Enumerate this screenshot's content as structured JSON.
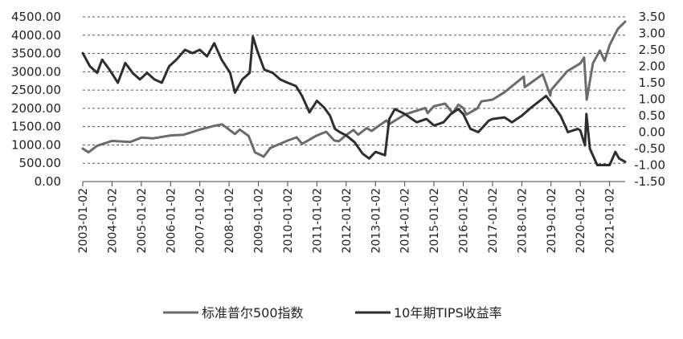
{
  "chart_data": {
    "type": "line",
    "title": "",
    "xlabel": "",
    "ylabel": "",
    "y2label": "",
    "x_ticks": [
      "2003-01-02",
      "2004-01-02",
      "2005-01-02",
      "2006-01-02",
      "2007-01-02",
      "2008-01-02",
      "2009-01-02",
      "2010-01-02",
      "2011-01-02",
      "2012-01-02",
      "2013-01-02",
      "2014-01-02",
      "2015-01-02",
      "2016-01-02",
      "2017-01-02",
      "2018-01-02",
      "2019-01-02",
      "2020-01-02",
      "2021-01-02"
    ],
    "xlim": [
      "2003-01-02",
      "2021-07-15"
    ],
    "y_left": {
      "lim": [
        0,
        4500
      ],
      "ticks": [
        "0.00",
        "500.00",
        "1000.00",
        "1500.00",
        "2000.00",
        "2500.00",
        "3000.00",
        "3500.00",
        "4000.00",
        "4500.00"
      ]
    },
    "y_right": {
      "lim": [
        -1.5,
        3.5
      ],
      "ticks": [
        "-1.50",
        "-1.00",
        "-0.50",
        "0.00",
        "0.50",
        "1.00",
        "1.50",
        "2.00",
        "2.50",
        "3.00",
        "3.50"
      ]
    },
    "grid": "horizontal dashed",
    "legend_position": "bottom",
    "series": [
      {
        "name": "标准普尔500指数",
        "axis": "left",
        "color": "#6b6b6b",
        "x": [
          "2003-01-02",
          "2003-03-15",
          "2003-07-01",
          "2004-01-02",
          "2004-08-15",
          "2005-01-02",
          "2005-06-01",
          "2006-01-02",
          "2006-06-15",
          "2007-01-02",
          "2007-07-15",
          "2007-10-09",
          "2008-03-15",
          "2008-05-15",
          "2008-09-01",
          "2008-11-20",
          "2009-03-09",
          "2009-06-01",
          "2010-01-02",
          "2010-04-25",
          "2010-07-02",
          "2011-01-02",
          "2011-04-29",
          "2011-08-08",
          "2011-10-03",
          "2012-01-02",
          "2012-04-01",
          "2012-06-01",
          "2012-09-15",
          "2012-11-15",
          "2013-01-02",
          "2013-05-21",
          "2013-06-24",
          "2014-01-02",
          "2014-09-15",
          "2014-10-15",
          "2015-01-02",
          "2015-05-21",
          "2015-08-25",
          "2015-11-01",
          "2016-01-02",
          "2016-02-11",
          "2016-06-27",
          "2016-08-15",
          "2017-01-02",
          "2017-06-01",
          "2018-01-26",
          "2018-02-08",
          "2018-09-20",
          "2018-12-24",
          "2019-01-02",
          "2019-07-26",
          "2020-01-02",
          "2020-02-19",
          "2020-03-23",
          "2020-06-08",
          "2020-09-02",
          "2020-11-01",
          "2021-01-02",
          "2021-04-15",
          "2021-07-15"
        ],
        "values": [
          900,
          800,
          980,
          1110,
          1080,
          1200,
          1180,
          1260,
          1280,
          1420,
          1530,
          1560,
          1300,
          1420,
          1250,
          800,
          680,
          920,
          1120,
          1210,
          1030,
          1260,
          1360,
          1120,
          1100,
          1270,
          1410,
          1280,
          1460,
          1380,
          1460,
          1670,
          1570,
          1830,
          2010,
          1870,
          2060,
          2130,
          1870,
          2100,
          2010,
          1830,
          2000,
          2190,
          2240,
          2440,
          2870,
          2580,
          2930,
          2350,
          2500,
          3020,
          3230,
          3390,
          2240,
          3230,
          3580,
          3300,
          3730,
          4170,
          4370
        ]
      },
      {
        "name": "10年期TIPS收益率",
        "axis": "right",
        "color": "#2e2e2e",
        "x": [
          "2003-01-02",
          "2003-04-01",
          "2003-07-01",
          "2003-09-01",
          "2003-12-01",
          "2004-03-15",
          "2004-06-15",
          "2004-09-15",
          "2004-12-15",
          "2005-03-15",
          "2005-06-15",
          "2005-09-15",
          "2005-12-15",
          "2006-03-15",
          "2006-07-01",
          "2006-10-01",
          "2007-01-02",
          "2007-04-01",
          "2007-07-01",
          "2007-10-01",
          "2008-01-15",
          "2008-03-15",
          "2008-06-15",
          "2008-09-15",
          "2008-10-25",
          "2008-12-15",
          "2009-03-15",
          "2009-07-01",
          "2009-10-01",
          "2010-01-02",
          "2010-04-15",
          "2010-07-01",
          "2010-10-01",
          "2011-01-02",
          "2011-04-01",
          "2011-06-15",
          "2011-08-15",
          "2011-10-15",
          "2012-01-02",
          "2012-04-15",
          "2012-07-25",
          "2012-10-15",
          "2013-01-02",
          "2013-05-01",
          "2013-06-24",
          "2013-09-01",
          "2014-01-02",
          "2014-06-01",
          "2014-10-01",
          "2015-01-02",
          "2015-05-01",
          "2015-08-01",
          "2015-11-01",
          "2016-01-02",
          "2016-04-01",
          "2016-07-08",
          "2016-11-15",
          "2017-01-02",
          "2017-06-01",
          "2017-09-01",
          "2018-01-02",
          "2018-05-01",
          "2018-11-01",
          "2019-01-02",
          "2019-05-01",
          "2019-08-01",
          "2019-12-01",
          "2020-01-02",
          "2020-03-01",
          "2020-03-19",
          "2020-05-01",
          "2020-08-01",
          "2020-12-01",
          "2021-01-02",
          "2021-03-15",
          "2021-05-01",
          "2021-07-15"
        ],
        "values": [
          2.4,
          2.0,
          1.8,
          2.2,
          1.9,
          1.5,
          2.1,
          1.8,
          1.6,
          1.8,
          1.6,
          1.5,
          2.0,
          2.2,
          2.5,
          2.4,
          2.5,
          2.3,
          2.7,
          2.2,
          1.8,
          1.2,
          1.6,
          1.8,
          2.9,
          2.5,
          1.9,
          1.8,
          1.6,
          1.5,
          1.4,
          1.1,
          0.6,
          0.95,
          0.75,
          0.5,
          0.1,
          0.0,
          -0.1,
          -0.3,
          -0.65,
          -0.8,
          -0.6,
          -0.7,
          0.4,
          0.7,
          0.55,
          0.3,
          0.4,
          0.2,
          0.3,
          0.55,
          0.7,
          0.55,
          0.1,
          0.0,
          0.35,
          0.4,
          0.45,
          0.3,
          0.5,
          0.75,
          1.1,
          0.9,
          0.5,
          0.0,
          0.1,
          0.05,
          -0.4,
          0.55,
          -0.5,
          -1.0,
          -1.0,
          -1.0,
          -0.6,
          -0.8,
          -0.9
        ]
      }
    ]
  }
}
